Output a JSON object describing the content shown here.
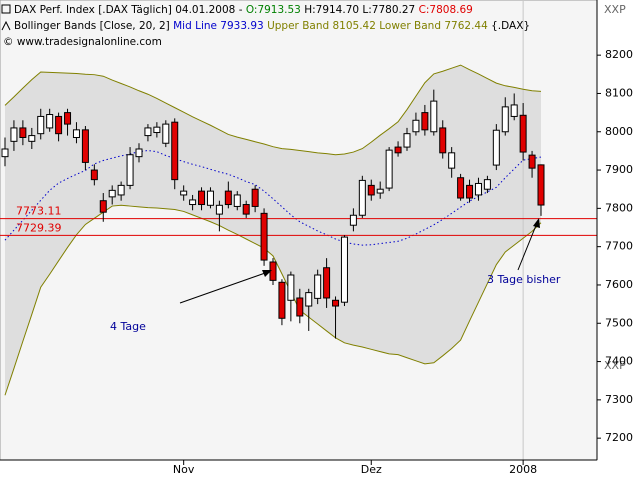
{
  "chart_data": {
    "type": "candlestick",
    "header": {
      "line1": [
        "DAX Perf. Index [.DAX  Täglich] 04.01.2008 - ",
        "O:7913.53",
        " H:7914.70 L:7780.27 ",
        "C:7808.69"
      ],
      "line2": [
        "Bollinger Bands [Close, 20, 2] ",
        "Mid Line 7933.93",
        " Upper Band 8105.42 Lower Band 7762.44",
        " {.DAX}"
      ],
      "line3": "© www.tradesignalonline.com",
      "corner_top": "XXP",
      "corner_bottom": "XXP"
    },
    "categories": [
      null,
      null,
      null,
      null,
      null,
      null,
      null,
      null,
      null,
      null,
      null,
      null,
      null,
      null,
      null,
      null,
      null,
      null,
      null,
      null,
      "Nov",
      null,
      null,
      null,
      null,
      null,
      null,
      null,
      null,
      null,
      null,
      null,
      null,
      null,
      null,
      null,
      null,
      null,
      null,
      null,
      null,
      "Dez",
      null,
      null,
      null,
      null,
      null,
      null,
      null,
      null,
      null,
      null,
      null,
      null,
      null,
      null,
      null,
      null,
      "2008",
      null,
      null
    ],
    "open": [
      7935,
      7975,
      8010,
      7975,
      7995,
      8010,
      8040,
      8050,
      7985,
      8005,
      7900,
      7820,
      7830,
      7835,
      7860,
      7935,
      7990,
      7998,
      7970,
      8025,
      7835,
      7810,
      7845,
      7808,
      7785,
      7845,
      7805,
      7810,
      7850,
      7787,
      7660,
      7607,
      7560,
      7566,
      7545,
      7565,
      7645,
      7560,
      7555,
      7756,
      7782,
      7860,
      7840,
      7853,
      7960,
      7960,
      8000,
      8050,
      8000,
      8010,
      7905,
      7880,
      7860,
      7835,
      7850,
      7913,
      8000,
      8040,
      8043,
      7939,
      7913.53
    ],
    "high": [
      7985,
      8030,
      8030,
      8010,
      8060,
      8060,
      8050,
      8060,
      8025,
      8015,
      7915,
      7840,
      7860,
      7870,
      7960,
      7970,
      8020,
      8025,
      8030,
      8035,
      7860,
      7835,
      7855,
      7855,
      7820,
      7870,
      7845,
      7820,
      7860,
      7800,
      7670,
      7615,
      7635,
      7590,
      7590,
      7640,
      7670,
      7570,
      7730,
      7800,
      7885,
      7875,
      7870,
      7960,
      7975,
      8010,
      8050,
      8070,
      8110,
      8030,
      7960,
      7890,
      7875,
      7880,
      7885,
      8020,
      8090,
      8100,
      8075,
      7950,
      7914.7
    ],
    "low": [
      7910,
      7950,
      7965,
      7955,
      7980,
      8000,
      7975,
      7990,
      7970,
      7900,
      7860,
      7765,
      7810,
      7820,
      7850,
      7920,
      7975,
      7985,
      7960,
      7850,
      7820,
      7795,
      7795,
      7800,
      7740,
      7800,
      7795,
      7775,
      7790,
      7650,
      7600,
      7495,
      7505,
      7500,
      7480,
      7550,
      7540,
      7460,
      7545,
      7740,
      7775,
      7820,
      7825,
      7845,
      7935,
      7950,
      7990,
      7990,
      7990,
      7930,
      7880,
      7820,
      7815,
      7820,
      7840,
      7900,
      7990,
      8030,
      7925,
      7880,
      7780.27
    ],
    "close": [
      7955,
      8010,
      7985,
      7990,
      8040,
      8045,
      7995,
      8020,
      8005,
      7920,
      7875,
      7790,
      7847,
      7860,
      7940,
      7955,
      8010,
      8012,
      8020,
      7875,
      7845,
      7822,
      7810,
      7845,
      7808,
      7810,
      7835,
      7785,
      7805,
      7665,
      7612,
      7513,
      7626,
      7519,
      7580,
      7626,
      7566,
      7545,
      7725,
      7782,
      7873,
      7835,
      7850,
      7952,
      7945,
      7995,
      8030,
      8005,
      8080,
      7945,
      7945,
      7827,
      7827,
      7865,
      7875,
      8004,
      8065,
      8070,
      7947,
      7905,
      7808.69
    ],
    "up_color": "#ffffff",
    "down_color": "#e00000",
    "upper": {
      "color": "#808000",
      "values": [
        8069,
        8091,
        8114,
        8136,
        8156,
        8155,
        8154,
        8153,
        8152,
        8150,
        8149,
        8145,
        8135,
        8126,
        8117,
        8107,
        8098,
        8087,
        8075,
        8063,
        8051,
        8039,
        8028,
        8017,
        8005,
        7993,
        7986,
        7980,
        7974,
        7968,
        7961,
        7956,
        7954,
        7951,
        7948,
        7945,
        7943,
        7940,
        7942,
        7947,
        7956,
        7973,
        7991,
        8008,
        8026,
        8058,
        8093,
        8128,
        8151,
        8158,
        8166,
        8174,
        8162,
        8151,
        8139,
        8127,
        8120,
        8116,
        8111,
        8107,
        8105.42
      ]
    },
    "middle": {
      "color": "#0000cc",
      "values": [
        7717,
        7743,
        7769,
        7795,
        7821,
        7847,
        7866,
        7878,
        7889,
        7899,
        7916,
        7925,
        7931,
        7937,
        7942,
        7948,
        7951,
        7948,
        7938,
        7930,
        7922,
        7915,
        7909,
        7902,
        7895,
        7889,
        7880,
        7870,
        7862,
        7845,
        7825,
        7804,
        7783,
        7765,
        7753,
        7741,
        7731,
        7720,
        7712,
        7707,
        7704,
        7705,
        7708,
        7711,
        7714,
        7722,
        7733,
        7745,
        7757,
        7771,
        7787,
        7803,
        7819,
        7831,
        7843,
        7855,
        7880,
        7903,
        7926,
        7930,
        7933.93
      ]
    },
    "lower": {
      "color": "#808000",
      "values": [
        7312,
        7382,
        7453,
        7523,
        7594,
        7628,
        7663,
        7698,
        7731,
        7758,
        7774,
        7790,
        7806,
        7808,
        7806,
        7804,
        7802,
        7801,
        7799,
        7797,
        7792,
        7783,
        7774,
        7765,
        7755,
        7743,
        7732,
        7720,
        7708,
        7696,
        7676,
        7629,
        7581,
        7534,
        7516,
        7498,
        7480,
        7462,
        7449,
        7443,
        7438,
        7432,
        7426,
        7420,
        7418,
        7410,
        7402,
        7394,
        7397,
        7415,
        7434,
        7456,
        7506,
        7555,
        7604,
        7653,
        7686,
        7704,
        7722,
        7740,
        7762.44
      ]
    },
    "levels": [
      7773.11,
      7729.39
    ],
    "level_color": "#e00000",
    "annotations": [
      "4 Tage",
      "3 Tage bisher"
    ],
    "annotation_color": "#000099",
    "ylim": [
      7143,
      8344
    ],
    "yticks": [
      7200,
      7300,
      7400,
      7500,
      7600,
      7700,
      7800,
      7900,
      8000,
      8100,
      8200
    ]
  }
}
